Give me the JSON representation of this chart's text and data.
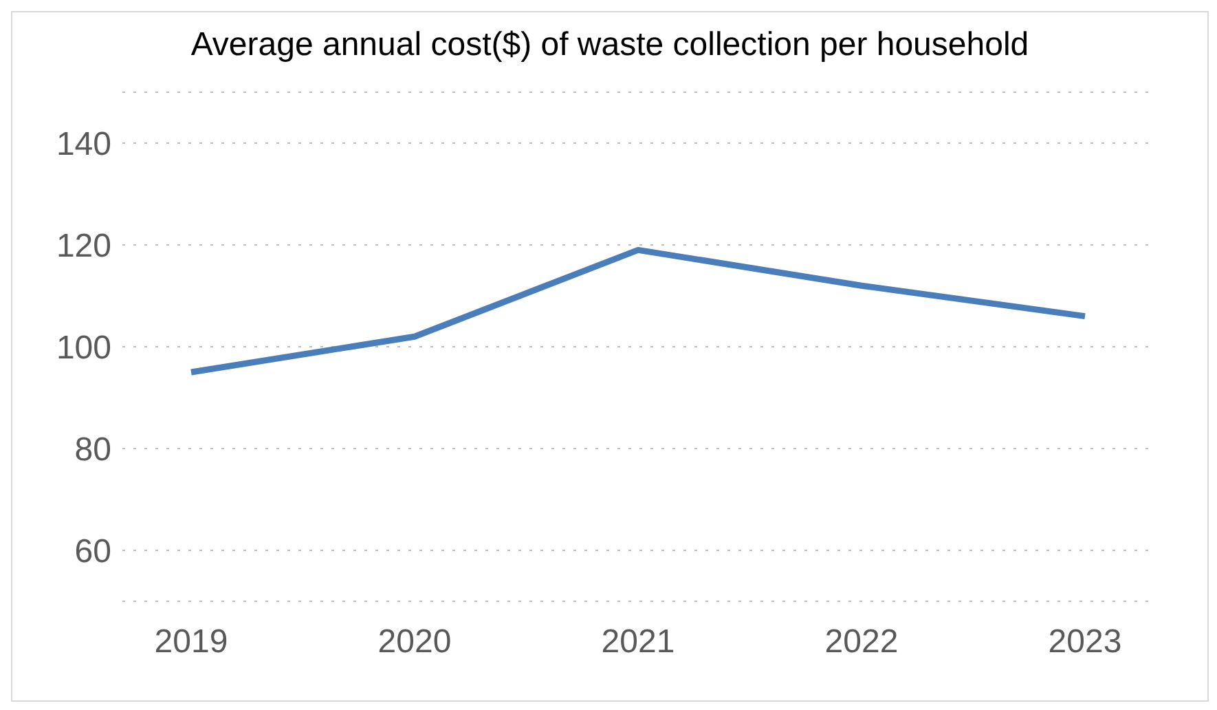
{
  "chart_data": {
    "type": "line",
    "title": "Average annual cost($) of waste collection per household",
    "categories": [
      "2019",
      "2020",
      "2021",
      "2022",
      "2023"
    ],
    "series": [
      {
        "color": "#4a7ebb",
        "values": [
          95,
          102,
          119,
          112,
          106
        ]
      }
    ],
    "ylim": [
      50,
      150
    ],
    "yticks": [
      60,
      80,
      100,
      120,
      140
    ],
    "grid": "y",
    "marker": "none",
    "line_style": "solid",
    "legend": false
  }
}
